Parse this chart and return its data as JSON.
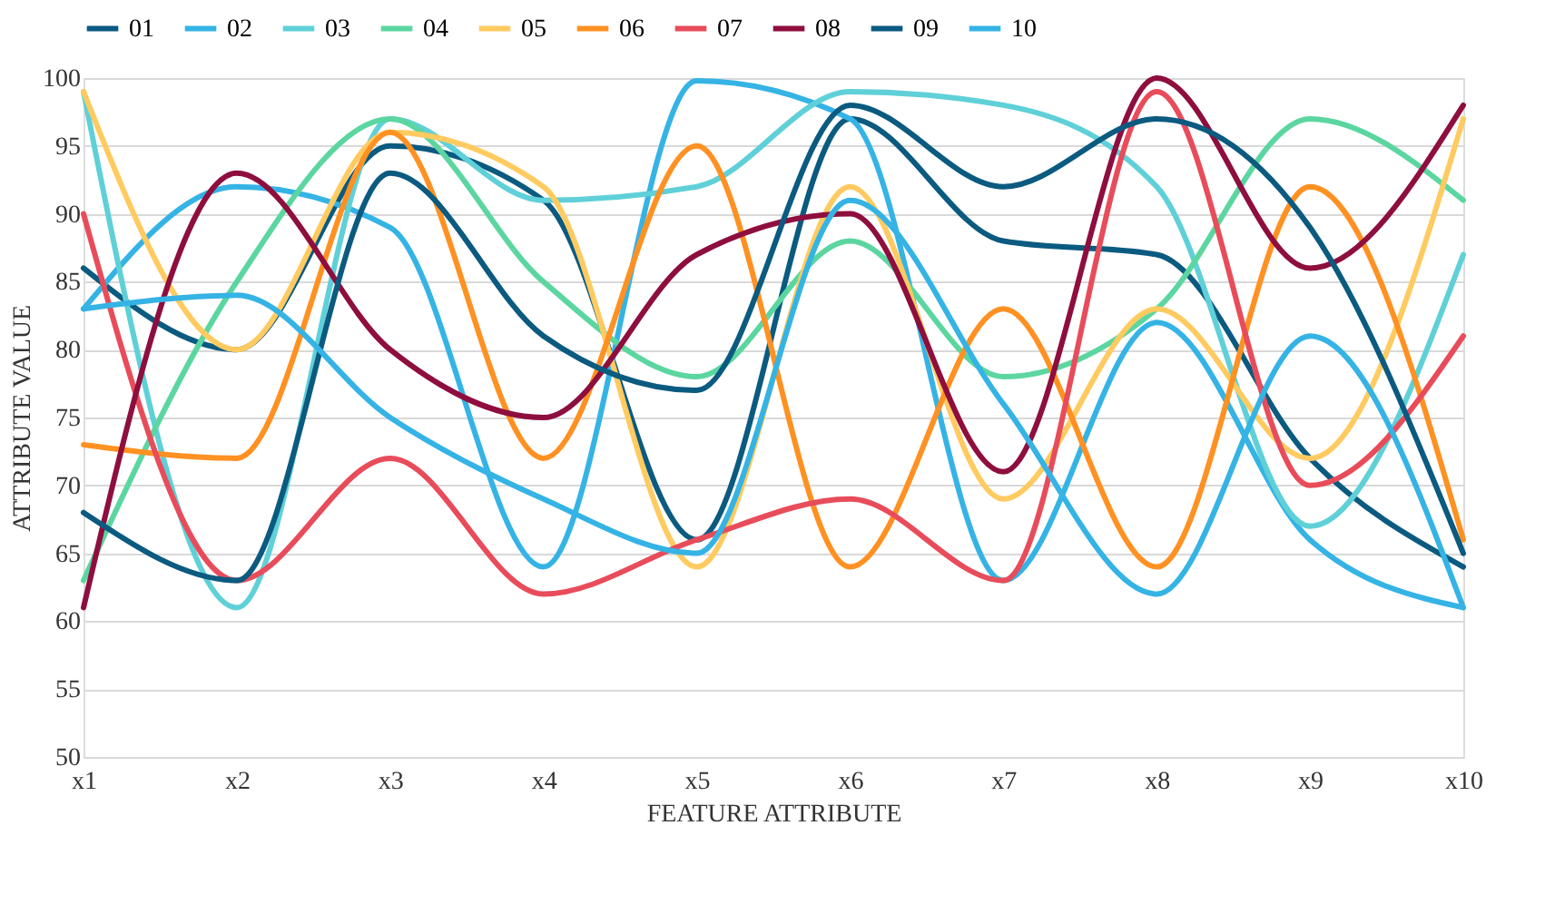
{
  "chart_data": {
    "type": "line",
    "xlabel": "FEATURE ATTRIBUTE",
    "ylabel": "ATTRIBUTE VALUE",
    "categories": [
      "x1",
      "x2",
      "x3",
      "x4",
      "x5",
      "x6",
      "x7",
      "x8",
      "x9",
      "x10"
    ],
    "ylim": [
      50,
      100
    ],
    "yticks": [
      50,
      55,
      60,
      65,
      70,
      75,
      80,
      85,
      90,
      95,
      100
    ],
    "grid": "y",
    "legend": "top",
    "marker": "none",
    "line_style": "solid",
    "series": [
      {
        "name": "01",
        "color": "#0b5a80",
        "values": [
          86,
          80,
          95,
          91,
          66,
          97,
          88,
          87,
          72,
          64
        ]
      },
      {
        "name": "02",
        "color": "#35b3e5",
        "values": [
          83,
          92,
          89,
          64,
          99.8,
          97,
          63,
          82,
          66,
          61
        ]
      },
      {
        "name": "03",
        "color": "#5fd0d8",
        "values": [
          99,
          61,
          97,
          91,
          92,
          99,
          98,
          92,
          67,
          87
        ]
      },
      {
        "name": "04",
        "color": "#5cd6a0",
        "values": [
          63,
          85,
          97,
          85,
          78,
          88,
          78,
          83,
          97,
          91
        ]
      },
      {
        "name": "05",
        "color": "#ffcb60",
        "values": [
          99,
          80,
          96,
          92,
          64,
          92,
          69,
          83,
          72,
          97
        ]
      },
      {
        "name": "06",
        "color": "#ff9122",
        "values": [
          73,
          72,
          96,
          72,
          95,
          64,
          83,
          64,
          92,
          66
        ]
      },
      {
        "name": "07",
        "color": "#e84c5b",
        "values": [
          90,
          63,
          72,
          62,
          66,
          69,
          63,
          99,
          70,
          81
        ]
      },
      {
        "name": "08",
        "color": "#8e0e3e",
        "values": [
          61,
          93,
          80,
          75,
          87,
          90,
          71,
          100,
          86,
          98
        ]
      },
      {
        "name": "09",
        "color": "#0b5a80",
        "values": [
          68,
          63,
          93,
          81,
          77,
          98,
          92,
          97,
          89,
          65
        ]
      },
      {
        "name": "10",
        "color": "#35b3e5",
        "values": [
          83,
          84,
          75,
          69,
          65,
          91,
          76,
          62,
          81,
          61
        ]
      }
    ]
  }
}
